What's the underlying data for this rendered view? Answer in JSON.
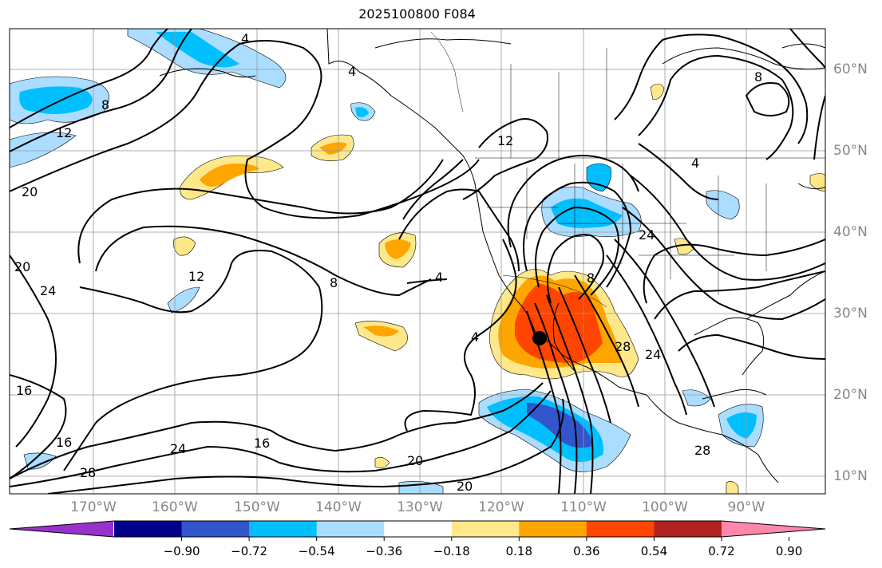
{
  "title": "2025100800 F084",
  "lon_labels": [
    "170°W",
    "160°W",
    "150°W",
    "140°W",
    "130°W",
    "120°W",
    "110°W",
    "100°W",
    "90°W"
  ],
  "lat_labels": [
    "60°N",
    "50°N",
    "40°N",
    "30°N",
    "20°N",
    "10°N"
  ],
  "contour_labels": [
    "4",
    "4",
    "4",
    "4",
    "4",
    "8",
    "8",
    "8",
    "8",
    "12",
    "12",
    "12",
    "16",
    "16",
    "16",
    "20",
    "20",
    "20",
    "20",
    "24",
    "24",
    "24",
    "24",
    "28",
    "28",
    "28"
  ],
  "colorbar": {
    "ticks": [
      "−0.90",
      "−0.72",
      "−0.54",
      "−0.36",
      "−0.18",
      "0.18",
      "0.36",
      "0.54",
      "0.72",
      "0.90"
    ],
    "colors": [
      "#9932cc",
      "#00008b",
      "#3355cc",
      "#00bfff",
      "#aaddff",
      "#ffffff",
      "#ffe88a",
      "#ffa500",
      "#ff4500",
      "#b22222",
      "#ff88aa"
    ]
  },
  "center_marker": "black-dot"
}
